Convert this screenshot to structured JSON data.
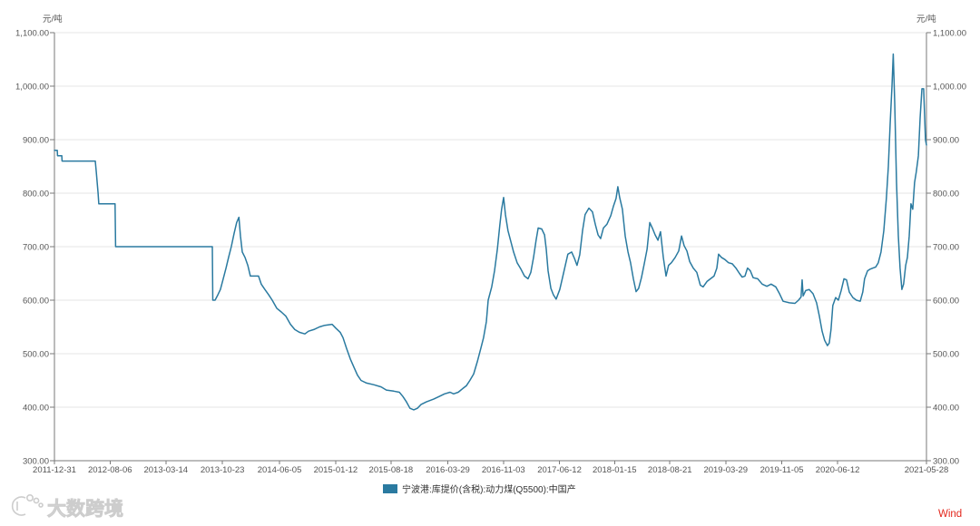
{
  "chart_data": {
    "type": "line",
    "y_unit_left": "元/吨",
    "y_unit_right": "元/吨",
    "ylim": [
      300,
      1100
    ],
    "yticks": [
      1100,
      1000,
      900,
      800,
      700,
      600,
      500,
      400,
      300
    ],
    "ytick_labels": [
      "1,100.00",
      "1,000.00",
      "900.00",
      "800.00",
      "700.00",
      "600.00",
      "500.00",
      "400.00",
      "300.00"
    ],
    "xlim": [
      "2011-12-31",
      "2021-05-28"
    ],
    "xticks": [
      "2011-12-31",
      "2012-08-06",
      "2013-03-14",
      "2013-10-23",
      "2014-06-05",
      "2015-01-12",
      "2015-08-18",
      "2016-03-29",
      "2016-11-03",
      "2017-06-12",
      "2018-01-15",
      "2018-08-21",
      "2019-03-29",
      "2019-11-05",
      "2020-06-12",
      "2021-05-28"
    ],
    "grid": "horizontal",
    "legend_position": "bottom",
    "series": [
      {
        "name": "宁波港:库提价(含税):动力煤(Q5500):中国产",
        "color": "#2a7aa0",
        "x": [
          "2011-12-31",
          "2012-01-11",
          "2012-01-12",
          "2012-01-29",
          "2012-01-30",
          "2012-06-09",
          "2012-06-13",
          "2012-06-20",
          "2012-06-23",
          "2012-08-26",
          "2012-08-28",
          "2013-09-13",
          "2013-09-15",
          "2013-09-24",
          "2013-10-05",
          "2013-10-15",
          "2013-10-26",
          "2013-11-06",
          "2013-11-16",
          "2013-11-27",
          "2013-12-08",
          "2013-12-18",
          "2013-12-27",
          "2014-01-02",
          "2014-01-09",
          "2014-01-20",
          "2014-01-31",
          "2014-02-10",
          "2014-03-14",
          "2014-03-25",
          "2014-04-08",
          "2014-04-23",
          "2014-05-07",
          "2014-05-25",
          "2014-06-12",
          "2014-06-30",
          "2014-07-18",
          "2014-08-04",
          "2014-08-22",
          "2014-09-13",
          "2014-09-27",
          "2014-10-18",
          "2014-11-09",
          "2014-11-30",
          "2014-12-29",
          "2015-01-12",
          "2015-01-30",
          "2015-02-10",
          "2015-02-24",
          "2015-03-11",
          "2015-03-25",
          "2015-04-08",
          "2015-04-22",
          "2015-05-14",
          "2015-06-11",
          "2015-07-10",
          "2015-07-31",
          "2015-08-29",
          "2015-09-20",
          "2015-10-04",
          "2015-10-18",
          "2015-11-01",
          "2015-11-16",
          "2015-11-30",
          "2015-12-14",
          "2016-01-05",
          "2016-02-02",
          "2016-02-24",
          "2016-03-16",
          "2016-04-07",
          "2016-04-21",
          "2016-05-09",
          "2016-05-27",
          "2016-06-10",
          "2016-06-24",
          "2016-07-09",
          "2016-07-23",
          "2016-08-06",
          "2016-08-17",
          "2016-08-28",
          "2016-09-04",
          "2016-09-18",
          "2016-09-29",
          "2016-10-10",
          "2016-10-20",
          "2016-10-27",
          "2016-11-04",
          "2016-11-11",
          "2016-11-21",
          "2016-12-02",
          "2016-12-13",
          "2016-12-27",
          "2017-01-11",
          "2017-01-25",
          "2017-02-08",
          "2017-02-19",
          "2017-03-02",
          "2017-03-12",
          "2017-03-20",
          "2017-04-03",
          "2017-04-14",
          "2017-04-21",
          "2017-04-28",
          "2017-05-09",
          "2017-05-19",
          "2017-05-30",
          "2017-06-13",
          "2017-06-24",
          "2017-07-05",
          "2017-07-15",
          "2017-07-30",
          "2017-08-10",
          "2017-08-20",
          "2017-08-31",
          "2017-09-11",
          "2017-09-21",
          "2017-10-06",
          "2017-10-20",
          "2017-10-31",
          "2017-11-11",
          "2017-11-21",
          "2017-12-02",
          "2017-12-16",
          "2017-12-31",
          "2018-01-10",
          "2018-01-21",
          "2018-01-28",
          "2018-02-04",
          "2018-02-15",
          "2018-02-26",
          "2018-03-09",
          "2018-03-19",
          "2018-03-30",
          "2018-04-10",
          "2018-04-20",
          "2018-05-01",
          "2018-05-12",
          "2018-05-23",
          "2018-06-03",
          "2018-06-13",
          "2018-06-24",
          "2018-07-05",
          "2018-07-15",
          "2018-07-26",
          "2018-08-06",
          "2018-08-16",
          "2018-08-27",
          "2018-09-11",
          "2018-09-25",
          "2018-10-06",
          "2018-10-16",
          "2018-10-27",
          "2018-11-07",
          "2018-11-21",
          "2018-12-05",
          "2018-12-19",
          "2018-12-30",
          "2019-01-14",
          "2019-01-28",
          "2019-02-11",
          "2019-02-22",
          "2019-03-01",
          "2019-03-12",
          "2019-03-26",
          "2019-04-09",
          "2019-04-24",
          "2019-05-08",
          "2019-05-22",
          "2019-06-02",
          "2019-06-13",
          "2019-06-23",
          "2019-07-04",
          "2019-07-15",
          "2019-08-02",
          "2019-08-20",
          "2019-09-07",
          "2019-09-24",
          "2019-10-12",
          "2019-10-27",
          "2019-11-10",
          "2019-12-05",
          "2019-12-27",
          "2020-01-10",
          "2020-01-20",
          "2020-01-24",
          "2020-01-28",
          "2020-02-07",
          "2020-02-21",
          "2020-03-07",
          "2020-03-21",
          "2020-04-01",
          "2020-04-12",
          "2020-04-22",
          "2020-05-03",
          "2020-05-10",
          "2020-05-17",
          "2020-05-24",
          "2020-06-04",
          "2020-06-15",
          "2020-06-26",
          "2020-07-07",
          "2020-07-17",
          "2020-07-28",
          "2020-08-11",
          "2020-08-25",
          "2020-09-09",
          "2020-09-19",
          "2020-09-26",
          "2020-10-08",
          "2020-10-18",
          "2020-10-29",
          "2020-11-09",
          "2020-11-19",
          "2020-11-30",
          "2020-12-11",
          "2020-12-21",
          "2020-12-29",
          "2021-01-05",
          "2021-01-12",
          "2021-01-17",
          "2021-01-23",
          "2021-01-30",
          "2021-02-06",
          "2021-02-13",
          "2021-02-20",
          "2021-02-27",
          "2021-03-07",
          "2021-03-14",
          "2021-03-21",
          "2021-03-28",
          "2021-04-04",
          "2021-04-11",
          "2021-04-18",
          "2021-04-26",
          "2021-05-03",
          "2021-05-10",
          "2021-05-17",
          "2021-05-24",
          "2021-05-28"
        ],
        "y": [
          880,
          880,
          870,
          870,
          860,
          860,
          840,
          800,
          780,
          780,
          700,
          700,
          600,
          600,
          610,
          620,
          640,
          660,
          680,
          700,
          725,
          745,
          755,
          720,
          690,
          680,
          665,
          645,
          645,
          630,
          620,
          610,
          600,
          585,
          578,
          570,
          555,
          545,
          540,
          537,
          542,
          545,
          550,
          553,
          555,
          548,
          540,
          530,
          510,
          490,
          475,
          460,
          450,
          445,
          442,
          438,
          432,
          430,
          428,
          420,
          410,
          398,
          395,
          398,
          405,
          410,
          415,
          420,
          425,
          428,
          425,
          428,
          435,
          440,
          450,
          462,
          485,
          510,
          530,
          560,
          600,
          625,
          655,
          695,
          740,
          770,
          792,
          760,
          730,
          710,
          690,
          670,
          658,
          645,
          640,
          652,
          680,
          712,
          735,
          733,
          722,
          695,
          655,
          622,
          610,
          602,
          620,
          642,
          665,
          686,
          690,
          678,
          665,
          685,
          730,
          760,
          772,
          765,
          742,
          722,
          715,
          735,
          742,
          758,
          775,
          790,
          812,
          792,
          770,
          720,
          690,
          670,
          640,
          616,
          622,
          642,
          668,
          695,
          745,
          735,
          722,
          712,
          728,
          680,
          645,
          665,
          670,
          680,
          692,
          720,
          702,
          692,
          672,
          660,
          652,
          628,
          625,
          635,
          640,
          645,
          660,
          686,
          680,
          676,
          670,
          668,
          660,
          650,
          643,
          645,
          660,
          655,
          642,
          640,
          630,
          626,
          630,
          625,
          612,
          598,
          595,
          594,
          600,
          606,
          638,
          608,
          618,
          620,
          612,
          595,
          570,
          542,
          525,
          515,
          520,
          545,
          590,
          605,
          600,
          618,
          640,
          638,
          615,
          605,
          600,
          598,
          615,
          640,
          655,
          658,
          660,
          662,
          670,
          690,
          730,
          790,
          850,
          930,
          1000,
          1060,
          970,
          820,
          720,
          660,
          620,
          630,
          665,
          680,
          720,
          780,
          770,
          820,
          840,
          870,
          940,
          995,
          995,
          900,
          890
        ]
      }
    ]
  },
  "watermark": {
    "text": "大数跨境"
  },
  "source": {
    "text": "Wind",
    "color": "#e3261c"
  }
}
